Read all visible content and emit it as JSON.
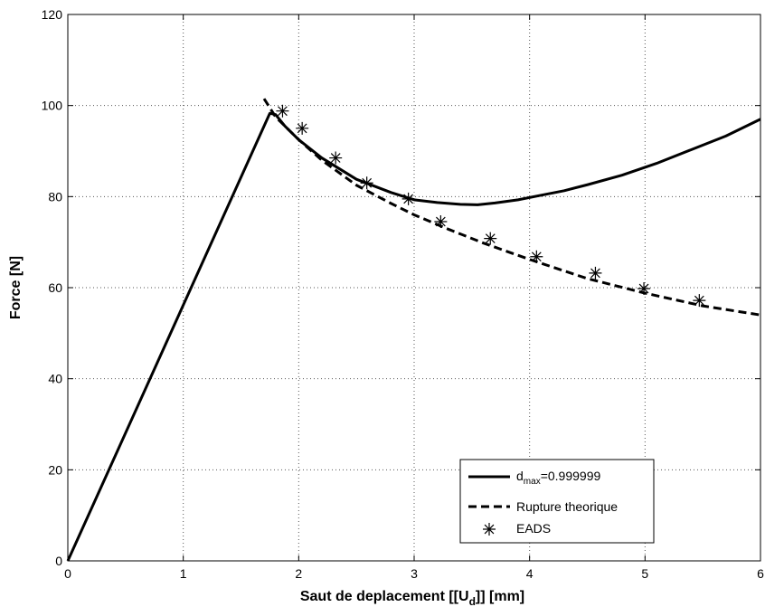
{
  "chart_data": {
    "type": "line",
    "title": "",
    "xlabel_parts": [
      "Saut de deplacement [[U",
      "d",
      "]] [mm]"
    ],
    "ylabel": "Force [N]",
    "xlim": [
      0,
      6
    ],
    "ylim": [
      0,
      120
    ],
    "xticks": [
      0,
      1,
      2,
      3,
      4,
      5,
      6
    ],
    "yticks": [
      0,
      20,
      40,
      60,
      80,
      100,
      120
    ],
    "grid": true,
    "legend_position": "bottom-right",
    "series": [
      {
        "name_parts": [
          "d",
          "max",
          "=0.999999"
        ],
        "style": "solid",
        "x": [
          0,
          1.75,
          1.8,
          1.88,
          2.0,
          2.2,
          2.5,
          2.8,
          3.0,
          3.2,
          3.4,
          3.55,
          3.7,
          3.9,
          4.1,
          4.3,
          4.5,
          4.8,
          5.1,
          5.4,
          5.7,
          6.0
        ],
        "y": [
          0,
          98.3,
          98.0,
          95.5,
          92.5,
          88.5,
          83.8,
          80.9,
          79.3,
          78.7,
          78.3,
          78.2,
          78.6,
          79.3,
          80.3,
          81.3,
          82.6,
          84.7,
          87.3,
          90.3,
          93.3,
          97.0
        ]
      },
      {
        "name": "Rupture theorique",
        "style": "dashed",
        "x": [
          1.7,
          1.8,
          2.0,
          2.2,
          2.5,
          2.8,
          3.0,
          3.3,
          3.6,
          4.0,
          4.5,
          5.0,
          5.5,
          6.0
        ],
        "y": [
          101.5,
          97.5,
          92.5,
          88.0,
          82.5,
          78.5,
          76.0,
          72.8,
          69.8,
          66.2,
          62.0,
          58.8,
          56.0,
          54.0
        ]
      },
      {
        "name": "EADS",
        "style": "marker",
        "x": [
          1.86,
          2.03,
          2.32,
          2.59,
          2.95,
          3.23,
          3.66,
          4.06,
          4.57,
          4.99,
          5.47
        ],
        "y": [
          98.8,
          95.0,
          88.5,
          83.0,
          79.5,
          74.5,
          70.8,
          66.8,
          63.2,
          59.8,
          57.2
        ]
      }
    ]
  }
}
